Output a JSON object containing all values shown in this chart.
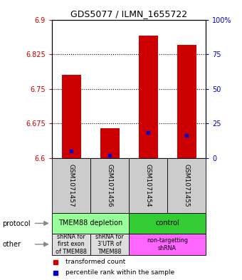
{
  "title": "GDS5077 / ILMN_1655722",
  "samples": [
    "GSM1071457",
    "GSM1071456",
    "GSM1071454",
    "GSM1071455"
  ],
  "red_bar_tops": [
    6.78,
    6.665,
    6.865,
    6.845
  ],
  "blue_markers": [
    6.615,
    6.607,
    6.655,
    6.65
  ],
  "bar_bottom": 6.6,
  "ylim_left": [
    6.6,
    6.9
  ],
  "ylim_right": [
    0,
    100
  ],
  "yticks_left": [
    6.6,
    6.675,
    6.75,
    6.825,
    6.9
  ],
  "ytick_labels_left": [
    "6.6",
    "6.675",
    "6.75",
    "6.825",
    "6.9"
  ],
  "yticks_right": [
    0,
    25,
    50,
    75,
    100
  ],
  "ytick_labels_right": [
    "0",
    "25",
    "50",
    "75",
    "100%"
  ],
  "hlines": [
    6.675,
    6.75,
    6.825
  ],
  "bar_color": "#cc0000",
  "blue_color": "#0000cc",
  "bar_width": 0.5,
  "protocol_labels": [
    "TMEM88 depletion",
    "control"
  ],
  "protocol_colors": [
    "#99ff99",
    "#33cc33"
  ],
  "other_labels": [
    "shRNA for\nfirst exon\nof TMEM88",
    "shRNA for\n3'UTR of\nTMEM88",
    "non-targetting\nshRNA"
  ],
  "other_colors": [
    "#dddddd",
    "#dddddd",
    "#ff66ff"
  ],
  "legend_red": "transformed count",
  "legend_blue": "percentile rank within the sample",
  "bg_color": "#ffffff"
}
